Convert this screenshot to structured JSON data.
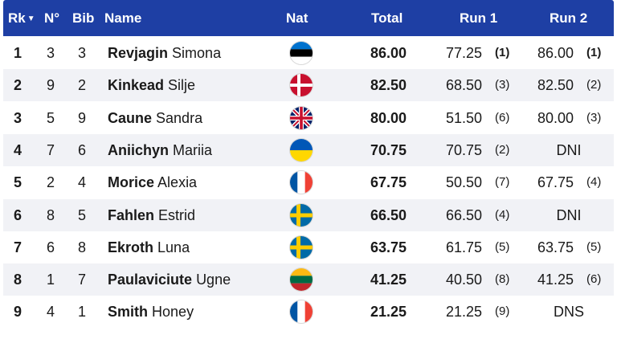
{
  "header": {
    "rk": "Rk",
    "rk_sort_icon": "sort-down-icon",
    "num": "N°",
    "bib": "Bib",
    "name": "Name",
    "nat": "Nat",
    "total": "Total",
    "run1": "Run 1",
    "run2": "Run 2"
  },
  "colors": {
    "header_bg": "#1e3fa4",
    "row_alt_bg": "#f1f2f6"
  },
  "rows": [
    {
      "rk": "1",
      "num": "3",
      "bib": "3",
      "last": "Revjagin",
      "first": "Simona",
      "flag": "EST",
      "total": "86.00",
      "run1": "77.25",
      "run1_rank": "(1)",
      "run2": "86.00",
      "run2_rank": "(1)"
    },
    {
      "rk": "2",
      "num": "9",
      "bib": "2",
      "last": "Kinkead",
      "first": "Silje",
      "flag": "DEN",
      "total": "82.50",
      "run1": "68.50",
      "run1_rank": "(3)",
      "run2": "82.50",
      "run2_rank": "(2)"
    },
    {
      "rk": "3",
      "num": "5",
      "bib": "9",
      "last": "Caune",
      "first": "Sandra",
      "flag": "GBR",
      "total": "80.00",
      "run1": "51.50",
      "run1_rank": "(6)",
      "run2": "80.00",
      "run2_rank": "(3)"
    },
    {
      "rk": "4",
      "num": "7",
      "bib": "6",
      "last": "Aniichyn",
      "first": "Mariia",
      "flag": "UKR",
      "total": "70.75",
      "run1": "70.75",
      "run1_rank": "(2)",
      "run2": "DNI",
      "run2_rank": ""
    },
    {
      "rk": "5",
      "num": "2",
      "bib": "4",
      "last": "Morice",
      "first": "Alexia",
      "flag": "FRA",
      "total": "67.75",
      "run1": "50.50",
      "run1_rank": "(7)",
      "run2": "67.75",
      "run2_rank": "(4)"
    },
    {
      "rk": "6",
      "num": "8",
      "bib": "5",
      "last": "Fahlen",
      "first": "Estrid",
      "flag": "SWE",
      "total": "66.50",
      "run1": "66.50",
      "run1_rank": "(4)",
      "run2": "DNI",
      "run2_rank": ""
    },
    {
      "rk": "7",
      "num": "6",
      "bib": "8",
      "last": "Ekroth",
      "first": "Luna",
      "flag": "SWE",
      "total": "63.75",
      "run1": "61.75",
      "run1_rank": "(5)",
      "run2": "63.75",
      "run2_rank": "(5)"
    },
    {
      "rk": "8",
      "num": "1",
      "bib": "7",
      "last": "Paulaviciute",
      "first": "Ugne",
      "flag": "LTU",
      "total": "41.25",
      "run1": "40.50",
      "run1_rank": "(8)",
      "run2": "41.25",
      "run2_rank": "(6)"
    },
    {
      "rk": "9",
      "num": "4",
      "bib": "1",
      "last": "Smith",
      "first": "Honey",
      "flag": "FRA",
      "total": "21.25",
      "run1": "21.25",
      "run1_rank": "(9)",
      "run2": "DNS",
      "run2_rank": ""
    }
  ]
}
